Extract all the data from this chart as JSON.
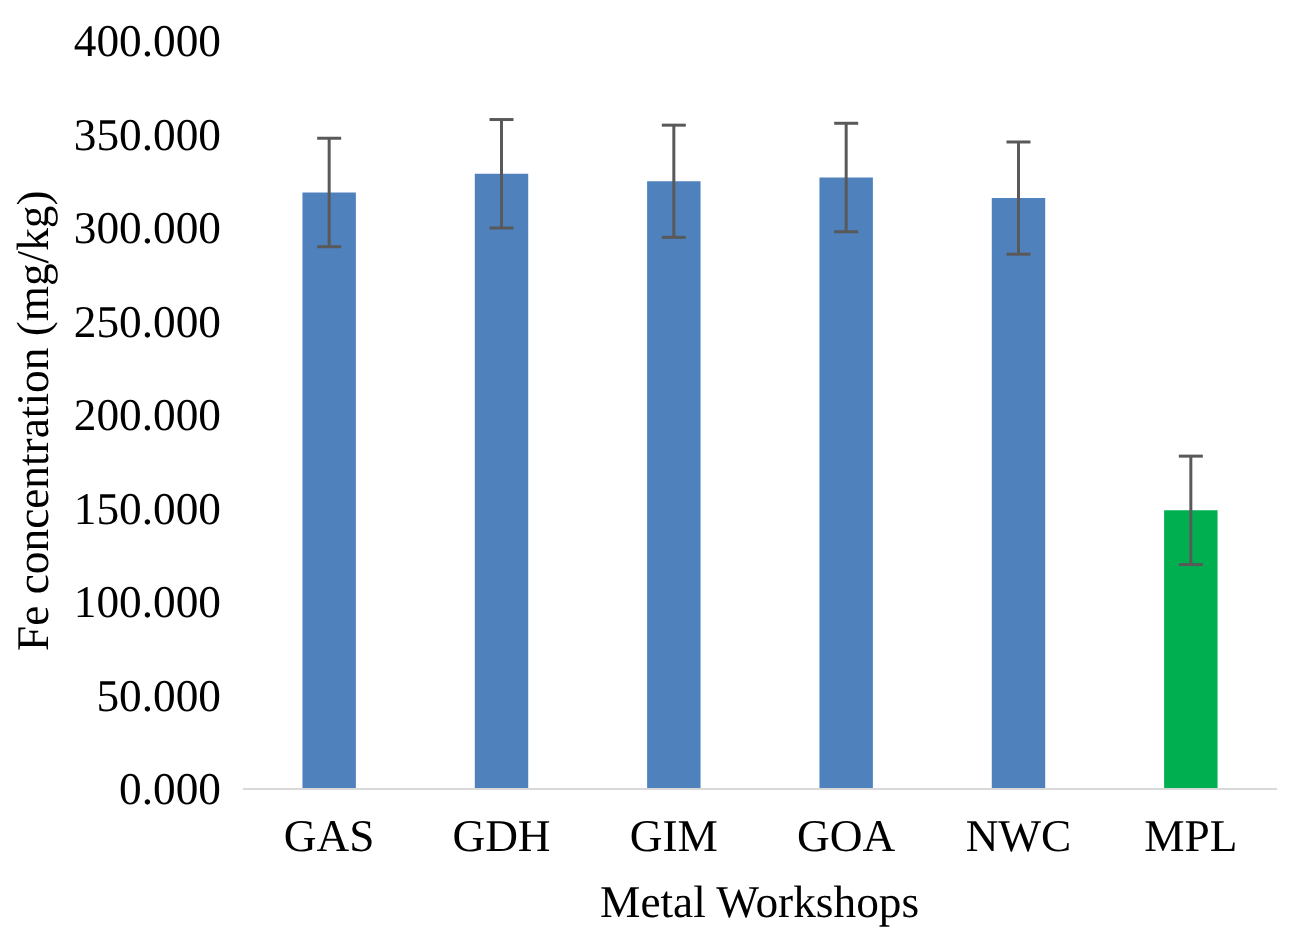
{
  "chart_data": {
    "type": "bar",
    "xlabel": "Metal Workshops",
    "ylabel": "Fe  concentration (mg/kg)",
    "categories": [
      "GAS",
      "GDH",
      "GIM",
      "GOA",
      "NWC",
      "MPL"
    ],
    "values": [
      319,
      329,
      325,
      327,
      316,
      149
    ],
    "colors": [
      "#4f81bd",
      "#4f81bd",
      "#4f81bd",
      "#4f81bd",
      "#4f81bd",
      "#00b050"
    ],
    "errors": [
      29,
      29,
      30,
      29,
      30,
      29
    ],
    "ylim": [
      0,
      400
    ],
    "yticks": [
      {
        "value": 0,
        "label": "0.000"
      },
      {
        "value": 50,
        "label": "50.000"
      },
      {
        "value": 100,
        "label": "100.000"
      },
      {
        "value": 150,
        "label": "150.000"
      },
      {
        "value": 200,
        "label": "200.000"
      },
      {
        "value": 250,
        "label": "250.000"
      },
      {
        "value": 300,
        "label": "300.000"
      },
      {
        "value": 350,
        "label": "350.000"
      },
      {
        "value": 400,
        "label": "400.000"
      }
    ],
    "grid": false
  }
}
